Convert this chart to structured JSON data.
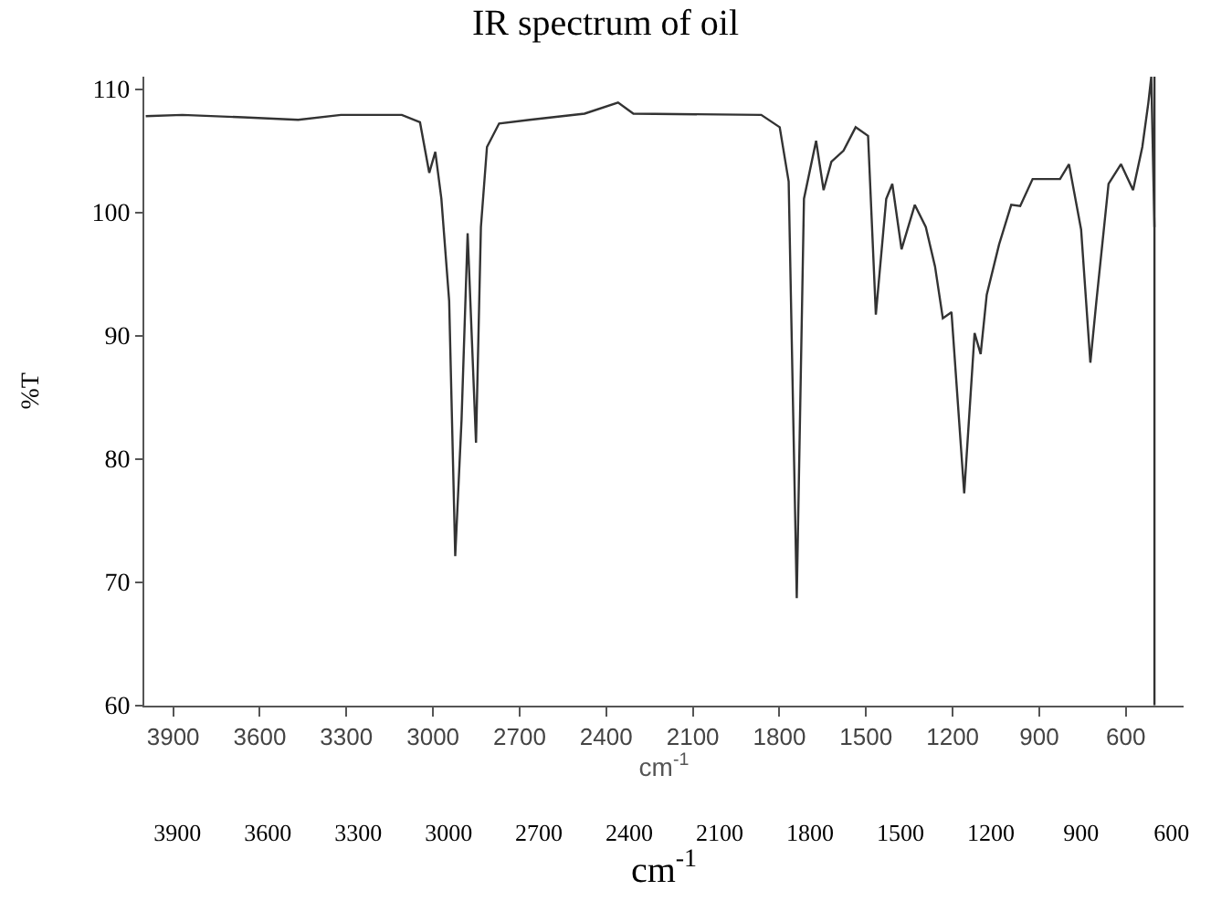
{
  "chart_data": {
    "type": "line",
    "title": "IR spectrum of oil",
    "xlabel": "cm$^{-1}$",
    "ylabel": "%T",
    "x2label": "cm$^{-1}$",
    "xlim": [
      4000,
      400
    ],
    "xticks": [
      3900,
      3600,
      3300,
      3000,
      2700,
      2400,
      2100,
      1800,
      1500,
      1200,
      900,
      600
    ],
    "x2lim": [
      4010,
      560
    ],
    "x2ticks": [
      3900,
      3600,
      3300,
      3000,
      2700,
      2400,
      2100,
      1800,
      1500,
      1200,
      900,
      600
    ],
    "ylim": [
      60,
      111
    ],
    "yticks": [
      60,
      70,
      80,
      90,
      100,
      110
    ],
    "marker": "none",
    "line_style": "solid",
    "ref_lines": [
      {
        "axis": "x",
        "value": 501,
        "color": "#333333"
      }
    ],
    "series": [
      {
        "color": "#333333",
        "x": [
          3995,
          3868,
          3657,
          3467,
          3319,
          3108,
          3045,
          3013,
          2992,
          2971,
          2944,
          2923,
          2901,
          2880,
          2851,
          2834,
          2813,
          2771,
          2665,
          2475,
          2359,
          2306,
          1863,
          1799,
          1768,
          1740,
          1715,
          1673,
          1647,
          1620,
          1578,
          1536,
          1493,
          1466,
          1430,
          1409,
          1377,
          1331,
          1293,
          1261,
          1234,
          1204,
          1160,
          1124,
          1103,
          1082,
          1039,
          997,
          966,
          923,
          828,
          797,
          755,
          723,
          702,
          660,
          617,
          575,
          543,
          522,
          512,
          501
        ],
        "values": [
          107.8,
          107.9,
          107.7,
          107.5,
          107.9,
          107.9,
          107.3,
          103.2,
          104.9,
          101.1,
          92.8,
          72.1,
          83.2,
          98.3,
          81.3,
          98.8,
          105.3,
          107.2,
          107.5,
          108.0,
          108.9,
          108.0,
          107.9,
          106.9,
          102.5,
          68.7,
          101.1,
          105.8,
          101.8,
          104.1,
          105.0,
          106.9,
          106.2,
          91.7,
          101.1,
          102.3,
          97.0,
          100.6,
          98.8,
          95.6,
          91.4,
          91.9,
          77.2,
          90.2,
          88.5,
          93.3,
          97.4,
          100.6,
          100.5,
          102.7,
          102.7,
          103.9,
          98.6,
          87.8,
          92.8,
          102.3,
          103.9,
          101.8,
          105.3,
          108.9,
          111,
          98.8
        ]
      }
    ]
  }
}
